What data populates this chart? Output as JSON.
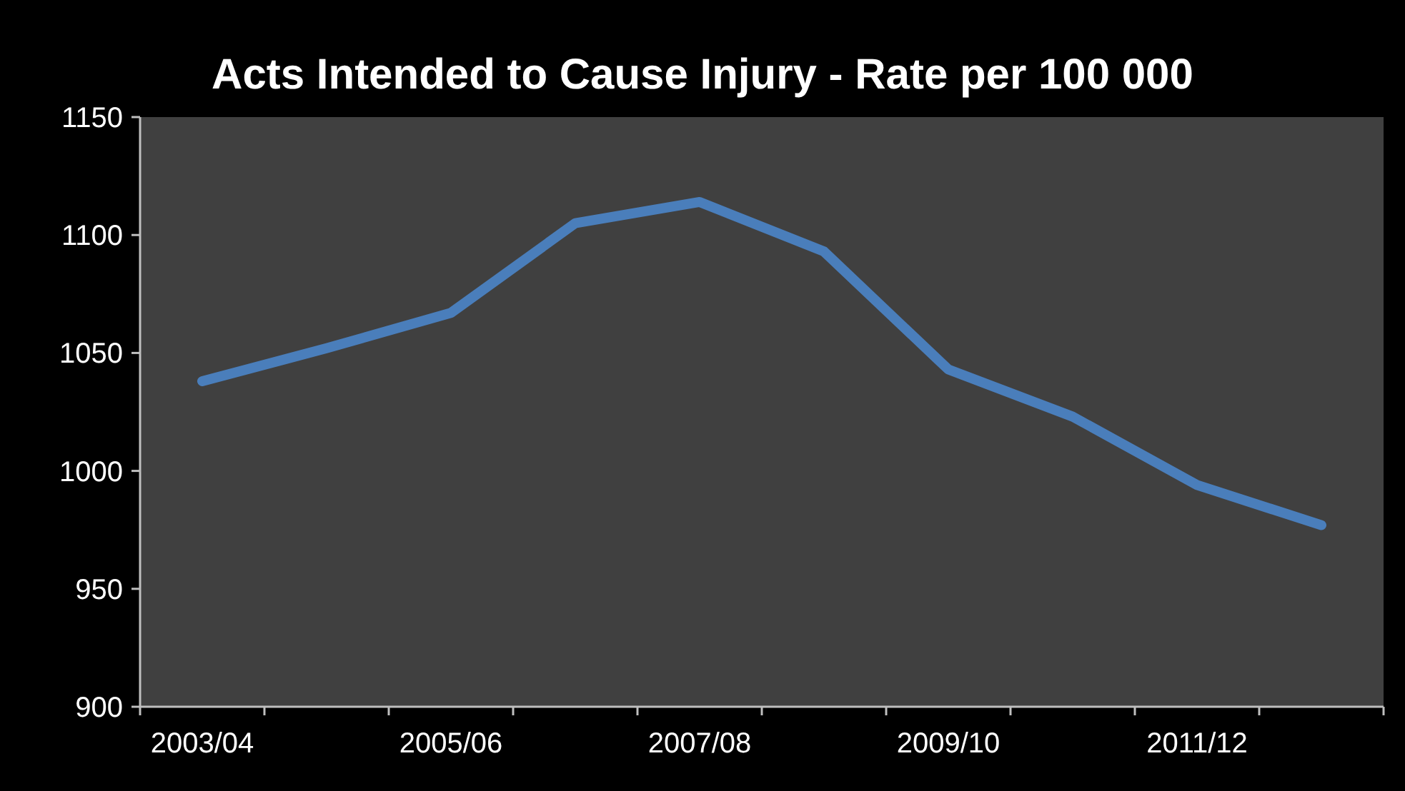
{
  "chart_data": {
    "type": "line",
    "title": "Acts Intended to Cause Injury - Rate per 100 000",
    "categories": [
      "2003/04",
      null,
      "2005/06",
      null,
      "2007/08",
      null,
      "2009/10",
      null,
      "2011/12",
      null
    ],
    "series": [
      {
        "color": "#4a7ebb",
        "values": [
          1038,
          1052,
          1067,
          1105,
          1114,
          1093,
          1043,
          1023,
          994,
          977
        ]
      }
    ],
    "ylim": [
      900,
      1150
    ],
    "yticks": [
      900,
      950,
      1000,
      1050,
      1100,
      1150
    ],
    "grid": false,
    "marker": "none",
    "line_style": "solid"
  }
}
